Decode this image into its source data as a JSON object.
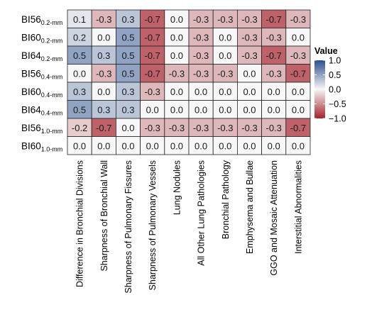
{
  "chart_data": {
    "type": "heatmap",
    "rows": [
      {
        "base": "BI56",
        "sub": "0.2-mm"
      },
      {
        "base": "BI60",
        "sub": "0.2-mm"
      },
      {
        "base": "BI64",
        "sub": "0.2-mm"
      },
      {
        "base": "BI56",
        "sub": "0.4-mm"
      },
      {
        "base": "BI60",
        "sub": "0.4-mm"
      },
      {
        "base": "BI64",
        "sub": "0.4-mm"
      },
      {
        "base": "BI56",
        "sub": "1.0-mm"
      },
      {
        "base": "BI60",
        "sub": "1.0-mm"
      }
    ],
    "columns": [
      "Difference in Bronchial Divisions",
      "Sharpness of Bronchial Wall",
      "Sharpness of Pulmonary Fissures",
      "Sharpness of Pulmonary Vessels",
      "Lung Nodules",
      "All Other Lung Pathologies",
      "Bronchial Pathology",
      "Emphysema and Bullae",
      "GGO and Mosaic Attenuation",
      "Interstitial Abnormalities"
    ],
    "values": [
      [
        0.1,
        -0.3,
        0.3,
        -0.7,
        0.0,
        -0.3,
        -0.3,
        -0.3,
        -0.7,
        -0.3
      ],
      [
        0.2,
        0.0,
        0.5,
        -0.7,
        0.0,
        -0.3,
        0.0,
        -0.3,
        -0.3,
        0.0
      ],
      [
        0.5,
        0.3,
        0.5,
        -0.7,
        0.0,
        -0.3,
        0.0,
        -0.3,
        -0.7,
        -0.3
      ],
      [
        0.0,
        -0.3,
        0.5,
        -0.7,
        -0.3,
        -0.3,
        -0.3,
        0.0,
        -0.3,
        -0.7
      ],
      [
        0.3,
        0.0,
        0.3,
        -0.3,
        0.0,
        0.0,
        0.0,
        0.0,
        0.0,
        0.0
      ],
      [
        0.5,
        0.3,
        0.3,
        0.0,
        0.0,
        0.0,
        0.0,
        0.0,
        0.0,
        0.0
      ],
      [
        -0.2,
        -0.7,
        0.0,
        -0.3,
        -0.3,
        -0.3,
        -0.3,
        -0.3,
        -0.3,
        -0.7
      ],
      [
        0.0,
        0.0,
        0.0,
        0.0,
        0.0,
        0.0,
        0.0,
        0.0,
        0.0,
        0.0
      ]
    ],
    "value_labels": [
      [
        "0.1",
        "-0.3",
        "0.3",
        "-0.7",
        "0.0",
        "-0.3",
        "-0.3",
        "-0.3",
        "-0.7",
        "-0.3"
      ],
      [
        "0.2",
        "0.0",
        "0.5",
        "-0.7",
        "0.0",
        "-0.3",
        "0.0",
        "-0.3",
        "-0.3",
        "0.0"
      ],
      [
        "0.5",
        "0.3",
        "0.5",
        "-0.7",
        "0.0",
        "-0.3",
        "0.0",
        "-0.3",
        "-0.7",
        "-0.3"
      ],
      [
        "0.0",
        "-0.3",
        "0.5",
        "-0.7",
        "-0.3",
        "-0.3",
        "-0.3",
        "0.0",
        "-0.3",
        "-0.7"
      ],
      [
        "0.3",
        "0.0",
        "0.3",
        "-0.3",
        "0.0",
        "0.0",
        "0.0",
        "0.0",
        "0.0",
        "0.0"
      ],
      [
        "0.5",
        "0.3",
        "0.3",
        "0.0",
        "0.0",
        "0.0",
        "0.0",
        "0.0",
        "0.0",
        "0.0"
      ],
      [
        "-0.2",
        "-0.7",
        "0.0",
        "-0.3",
        "-0.3",
        "-0.3",
        "-0.3",
        "-0.3",
        "-0.3",
        "-0.7"
      ],
      [
        "0.0",
        "0.0",
        "0.0",
        "0.0",
        "0.0",
        "0.0",
        "0.0",
        "0.0",
        "0.0",
        "0.0"
      ]
    ],
    "legend": {
      "title": "Value",
      "ticks": [
        1.0,
        0.5,
        0.0,
        -0.5,
        -1.0
      ],
      "tick_labels": [
        "1.0",
        "0.5",
        "0.0",
        "−0.5",
        "−1.0"
      ],
      "range": [
        -1.0,
        1.0
      ],
      "placement": "right"
    },
    "colors": {
      "low": "#a5212a",
      "mid": "#f7f7f7",
      "high": "#2b4f8f"
    }
  }
}
